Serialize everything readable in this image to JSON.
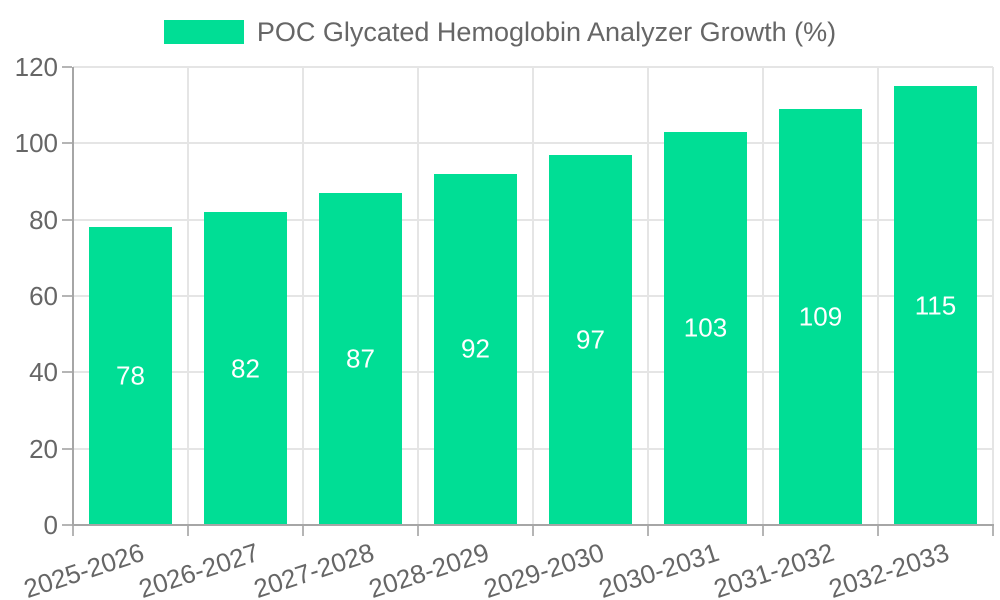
{
  "chart_data": {
    "type": "bar",
    "title": "",
    "legend": {
      "label": "POC Glycated Hemoglobin Analyzer Growth (%)",
      "position": "top-center"
    },
    "categories": [
      "2025-2026",
      "2026-2027",
      "2027-2028",
      "2028-2029",
      "2029-2030",
      "2030-2031",
      "2031-2032",
      "2032-2033"
    ],
    "values": [
      78,
      82,
      87,
      92,
      97,
      103,
      109,
      115
    ],
    "value_labels_shown": true,
    "xlabel": "",
    "ylabel": "",
    "ylim": [
      0,
      120
    ],
    "ytick_step": 20,
    "ytick_labels": [
      "0",
      "20",
      "40",
      "60",
      "80",
      "100",
      "120"
    ],
    "grid": true,
    "x_label_rotation_deg": -18,
    "colors": {
      "bar": "#00DE95",
      "value_label": "#ffffff",
      "axis": "#a6a6a6",
      "gridline": "#e5e5e5",
      "tick_mark": "#b5b5b5",
      "tick_text": "#666666",
      "background": "#ffffff"
    }
  }
}
